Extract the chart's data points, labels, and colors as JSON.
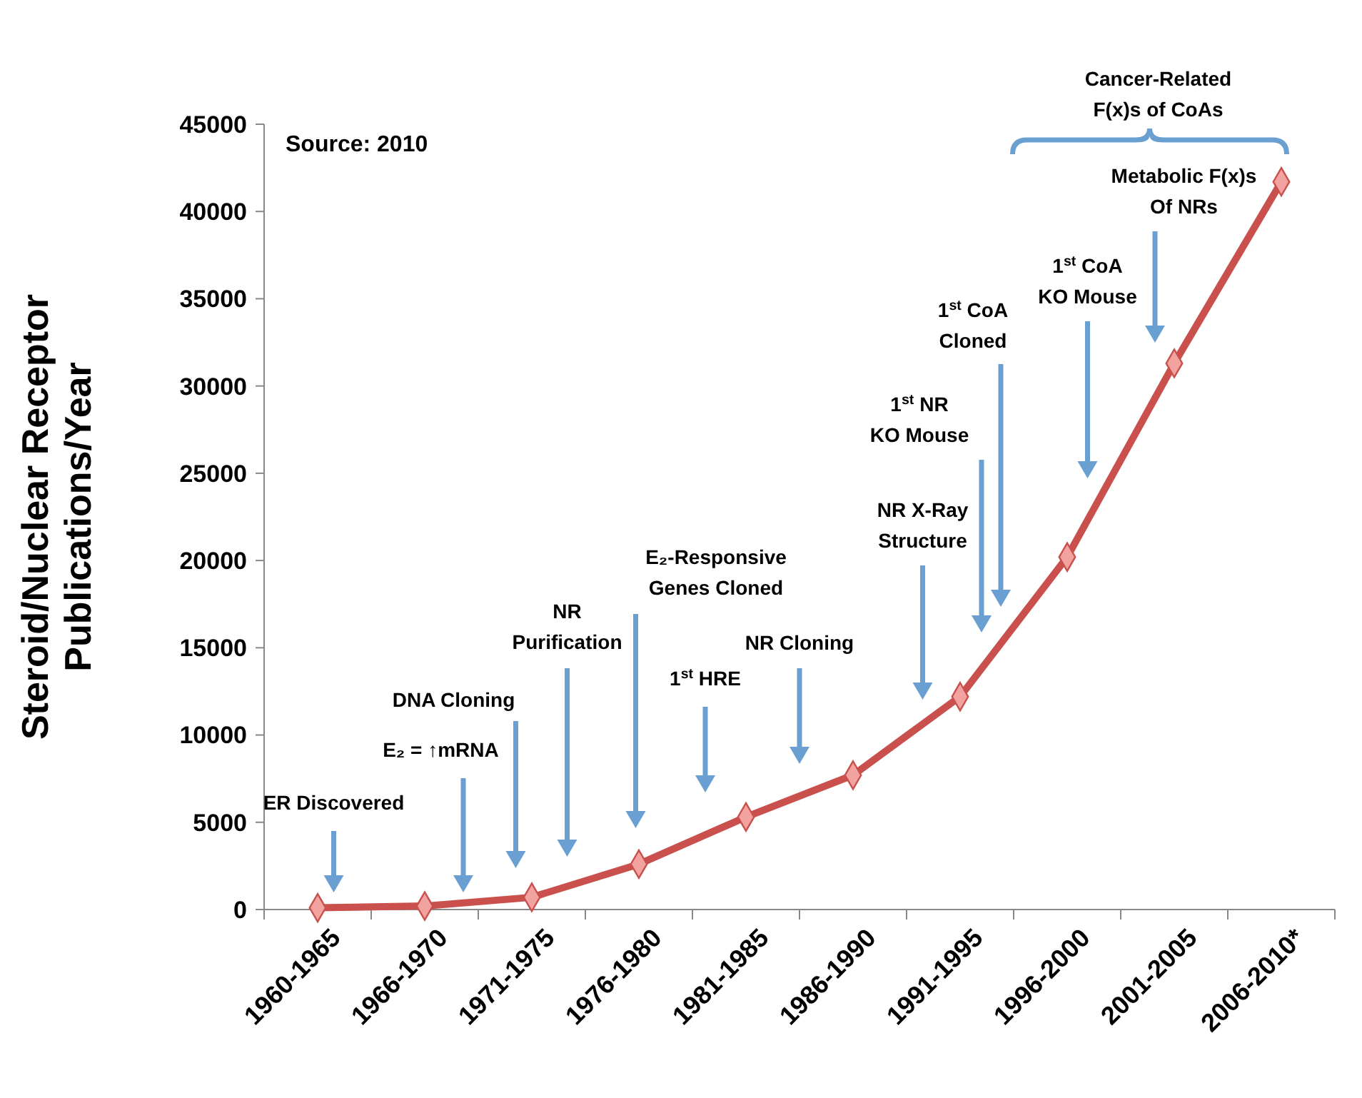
{
  "chart_data": {
    "type": "line",
    "ylabel": "Steroid/Nuclear Receptor\nPublications/Year",
    "categories": [
      "1960-1965",
      "1966-1970",
      "1971-1975",
      "1976-1980",
      "1981-1985",
      "1986-1990",
      "1991-1995",
      "1996-2000",
      "2001-2005",
      "2006-2010*"
    ],
    "series": [
      {
        "color": "#c9504c",
        "values": [
          100,
          200,
          700,
          2600,
          5300,
          7700,
          12200,
          20200,
          31300,
          41700
        ]
      }
    ],
    "ylim": [
      0,
      45000
    ],
    "yticks": [
      0,
      5000,
      10000,
      15000,
      20000,
      25000,
      30000,
      35000,
      40000,
      45000
    ],
    "marker": "diamond",
    "line_style": "solid",
    "grid": false,
    "annotations": [
      "Source: 2010",
      "ER Discovered",
      "E₂ = ↑mRNA",
      "DNA Cloning",
      "NR\nPurification",
      "E₂-Responsive\nGenes Cloned",
      "1$^{st}$ HRE",
      "NR Cloning",
      "NR X-Ray\nStructure",
      "1$^{st}$ NR\nKO Mouse",
      "1$^{st}$ CoA\nCloned",
      "1$^{st}$ CoA\nKO Mouse",
      "Metabolic F(x)s\nOf NRs",
      "Cancer-Related\nF(x)s of CoAs"
    ]
  }
}
